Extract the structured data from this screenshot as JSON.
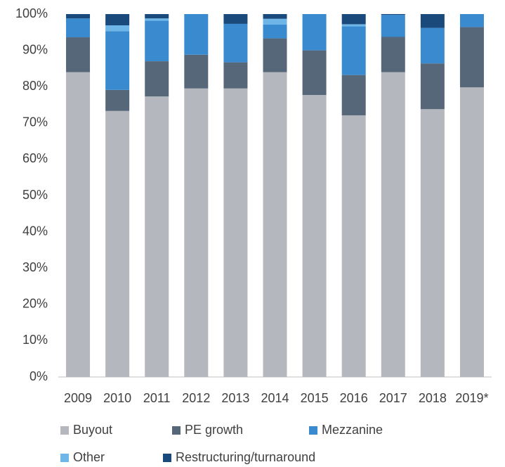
{
  "chart_data": {
    "type": "stacked_bar",
    "categories": [
      "2009",
      "2010",
      "2011",
      "2012",
      "2013",
      "2014",
      "2015",
      "2016",
      "2017",
      "2018",
      "2019*"
    ],
    "series": [
      {
        "name": "Buyout",
        "color": "#b4b7bd",
        "values": [
          84,
          73.3,
          77.3,
          79.5,
          79.5,
          84,
          77.7,
          72.1,
          84,
          73.8,
          79.8
        ]
      },
      {
        "name": "PE growth",
        "color": "#57677a",
        "values": [
          9.6,
          5.8,
          9.7,
          9.3,
          7.2,
          9.3,
          12.3,
          11.1,
          9.7,
          12.6,
          16.6
        ]
      },
      {
        "name": "Mezzanine",
        "color": "#3a8ad0",
        "values": [
          5.2,
          16.2,
          11.2,
          11.2,
          10.6,
          3.8,
          10,
          13.4,
          6.1,
          9.8,
          3.6
        ]
      },
      {
        "name": "Other",
        "color": "#6eb6e8",
        "values": [
          0,
          1.6,
          0.6,
          0,
          0,
          1.6,
          0,
          0.6,
          0,
          0,
          0
        ]
      },
      {
        "name": "Restructuring/turnaround",
        "color": "#1a4a7c",
        "values": [
          1.2,
          3.1,
          1.2,
          0,
          2.7,
          1.3,
          0,
          2.8,
          0.2,
          3.8,
          0
        ]
      }
    ],
    "ylim": [
      0,
      100
    ],
    "yticks": [
      {
        "value": 0,
        "label": "0%"
      },
      {
        "value": 10,
        "label": "10%"
      },
      {
        "value": 20,
        "label": "20%"
      },
      {
        "value": 30,
        "label": "30%"
      },
      {
        "value": 40,
        "label": "40%"
      },
      {
        "value": 50,
        "label": "50%"
      },
      {
        "value": 60,
        "label": "60%"
      },
      {
        "value": 70,
        "label": "70%"
      },
      {
        "value": 80,
        "label": "80%"
      },
      {
        "value": 90,
        "label": "90%"
      },
      {
        "value": 100,
        "label": "100%"
      }
    ],
    "grid": false
  }
}
